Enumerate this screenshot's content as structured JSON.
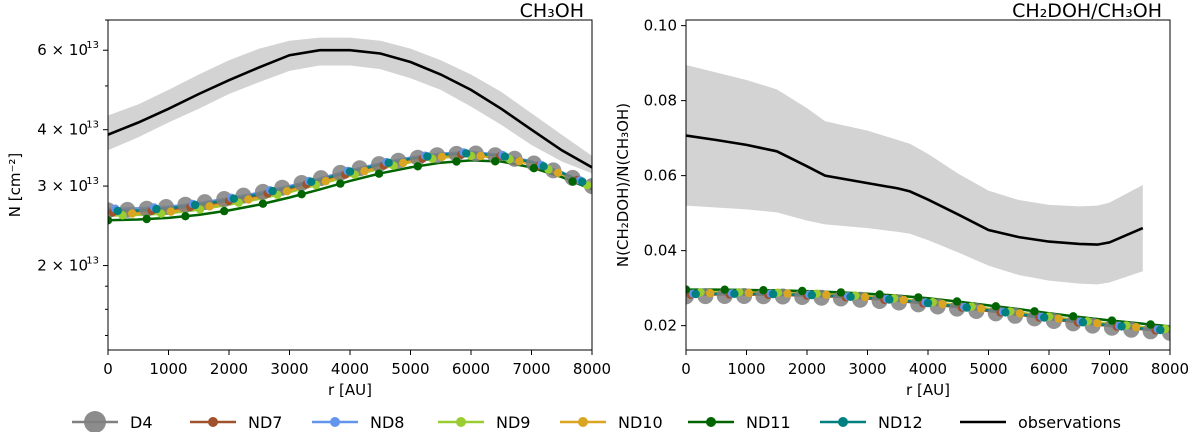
{
  "chart_data": [
    {
      "type": "line",
      "title": "CH₃OH",
      "xlabel": "r [AU]",
      "ylabel": "N [cm⁻²]",
      "yscale": "log",
      "xlim": [
        0,
        8000
      ],
      "ylim": [
        13000000000000.0,
        70000000000000.0
      ],
      "x_ticks": [
        0,
        1000,
        2000,
        3000,
        4000,
        5000,
        6000,
        7000,
        8000
      ],
      "y_ticks": [
        {
          "value": 20000000000000.0,
          "label": "2 × 10",
          "exp": "13"
        },
        {
          "value": 30000000000000.0,
          "label": "3 × 10",
          "exp": "13"
        },
        {
          "value": 40000000000000.0,
          "label": "4 × 10",
          "exp": "13"
        },
        {
          "value": 60000000000000.0,
          "label": "6 × 10",
          "exp": "13"
        }
      ],
      "observations": {
        "x": [
          0,
          500,
          1000,
          1500,
          2000,
          2500,
          3000,
          3500,
          4000,
          4500,
          5000,
          5500,
          6000,
          6500,
          7000,
          7500,
          8000
        ],
        "y": [
          39000000000000.0,
          41500000000000.0,
          44500000000000.0,
          48000000000000.0,
          51500000000000.0,
          55000000000000.0,
          58500000000000.0,
          60000000000000.0,
          60000000000000.0,
          59000000000000.0,
          56500000000000.0,
          53000000000000.0,
          49000000000000.0,
          44500000000000.0,
          40000000000000.0,
          36000000000000.0,
          33000000000000.0
        ],
        "band_low": [
          36000000000000.0,
          38500000000000.0,
          41500000000000.0,
          44500000000000.0,
          48000000000000.0,
          51000000000000.0,
          54000000000000.0,
          55500000000000.0,
          55500000000000.0,
          54500000000000.0,
          52000000000000.0,
          49000000000000.0,
          45000000000000.0,
          41000000000000.0,
          37000000000000.0,
          34000000000000.0,
          32000000000000.0
        ],
        "band_high": [
          43000000000000.0,
          45500000000000.0,
          49000000000000.0,
          53000000000000.0,
          57000000000000.0,
          60500000000000.0,
          63000000000000.0,
          64000000000000.0,
          64000000000000.0,
          63000000000000.0,
          60500000000000.0,
          57000000000000.0,
          53000000000000.0,
          48500000000000.0,
          43500000000000.0,
          39000000000000.0,
          35000000000000.0
        ]
      },
      "model_x": [
        0,
        500,
        1000,
        1500,
        2000,
        2500,
        3000,
        3500,
        4000,
        4500,
        5000,
        5500,
        6000,
        6500,
        7000,
        7500,
        8000
      ],
      "series": [
        {
          "name": "D4",
          "values": [
            26500000000000.0,
            26600000000000.0,
            27000000000000.0,
            27500000000000.0,
            28200000000000.0,
            29000000000000.0,
            30000000000000.0,
            31200000000000.0,
            32500000000000.0,
            33600000000000.0,
            34500000000000.0,
            35200000000000.0,
            35500000000000.0,
            35000000000000.0,
            33800000000000.0,
            32000000000000.0,
            30000000000000.0
          ]
        },
        {
          "name": "ND7",
          "values": [
            26200000000000.0,
            26300000000000.0,
            26600000000000.0,
            27100000000000.0,
            27800000000000.0,
            28600000000000.0,
            29600000000000.0,
            30800000000000.0,
            32000000000000.0,
            33200000000000.0,
            34200000000000.0,
            35000000000000.0,
            35300000000000.0,
            34900000000000.0,
            33700000000000.0,
            32000000000000.0,
            30000000000000.0
          ]
        },
        {
          "name": "ND8",
          "values": [
            26700000000000.0,
            26800000000000.0,
            27000000000000.0,
            27500000000000.0,
            28200000000000.0,
            29000000000000.0,
            30000000000000.0,
            31200000000000.0,
            32500000000000.0,
            33700000000000.0,
            34700000000000.0,
            35400000000000.0,
            35700000000000.0,
            35200000000000.0,
            34000000000000.0,
            32200000000000.0,
            30000000000000.0
          ]
        },
        {
          "name": "ND9",
          "values": [
            25800000000000.0,
            25900000000000.0,
            26100000000000.0,
            26600000000000.0,
            27300000000000.0,
            28100000000000.0,
            29100000000000.0,
            30300000000000.0,
            31600000000000.0,
            32800000000000.0,
            33900000000000.0,
            34700000000000.0,
            35000000000000.0,
            34700000000000.0,
            33600000000000.0,
            31900000000000.0,
            29800000000000.0
          ]
        },
        {
          "name": "ND10",
          "values": [
            26000000000000.0,
            26100000000000.0,
            26300000000000.0,
            26800000000000.0,
            27500000000000.0,
            28300000000000.0,
            29300000000000.0,
            30500000000000.0,
            31800000000000.0,
            33000000000000.0,
            34000000000000.0,
            34800000000000.0,
            35100000000000.0,
            34700000000000.0,
            33600000000000.0,
            31900000000000.0,
            29800000000000.0
          ]
        },
        {
          "name": "ND11",
          "values": [
            25200000000000.0,
            25300000000000.0,
            25500000000000.0,
            25900000000000.0,
            26500000000000.0,
            27300000000000.0,
            28300000000000.0,
            29500000000000.0,
            30800000000000.0,
            32000000000000.0,
            33000000000000.0,
            33800000000000.0,
            34200000000000.0,
            34000000000000.0,
            33000000000000.0,
            31400000000000.0,
            29500000000000.0
          ]
        },
        {
          "name": "ND12",
          "values": [
            26400000000000.0,
            26500000000000.0,
            26800000000000.0,
            27300000000000.0,
            28000000000000.0,
            28800000000000.0,
            29800000000000.0,
            31000000000000.0,
            32300000000000.0,
            33500000000000.0,
            34500000000000.0,
            35200000000000.0,
            35500000000000.0,
            35000000000000.0,
            33900000000000.0,
            32100000000000.0,
            30000000000000.0
          ]
        }
      ]
    },
    {
      "type": "line",
      "title": "CH₂DOH/CH₃OH",
      "xlabel": "r [AU]",
      "ylabel": "N(CH₂DOH)/N(CH₃OH)",
      "yscale": "linear",
      "xlim": [
        0,
        8000
      ],
      "ylim": [
        0.0135,
        0.1015
      ],
      "x_ticks": [
        0,
        1000,
        2000,
        3000,
        4000,
        5000,
        6000,
        7000,
        8000
      ],
      "y_ticks": [
        {
          "value": 0.02,
          "label": "0.02"
        },
        {
          "value": 0.04,
          "label": "0.04"
        },
        {
          "value": 0.06,
          "label": "0.06"
        },
        {
          "value": 0.08,
          "label": "0.08"
        },
        {
          "value": 0.1,
          "label": "0.10"
        }
      ],
      "observations": {
        "x": [
          0,
          500,
          1000,
          1500,
          2000,
          2300,
          3000,
          3500,
          3700,
          4000,
          4500,
          5000,
          5500,
          6000,
          6500,
          6800,
          7000,
          7550
        ],
        "y": [
          0.0707,
          0.0695,
          0.0682,
          0.0665,
          0.0625,
          0.06,
          0.058,
          0.0566,
          0.0558,
          0.0536,
          0.0496,
          0.0455,
          0.0436,
          0.0424,
          0.0418,
          0.0416,
          0.0422,
          0.046
        ],
        "band_low": [
          0.052,
          0.0515,
          0.051,
          0.0502,
          0.048,
          0.047,
          0.046,
          0.045,
          0.0445,
          0.0428,
          0.0395,
          0.036,
          0.0335,
          0.032,
          0.0312,
          0.031,
          0.0315,
          0.0345
        ],
        "band_high": [
          0.0895,
          0.0875,
          0.0855,
          0.083,
          0.078,
          0.0745,
          0.072,
          0.0695,
          0.0685,
          0.0658,
          0.0605,
          0.056,
          0.0535,
          0.0522,
          0.0518,
          0.052,
          0.0528,
          0.0575
        ]
      },
      "model_x": [
        0,
        500,
        1000,
        1500,
        2000,
        2500,
        3000,
        3500,
        4000,
        4500,
        5000,
        5500,
        6000,
        6500,
        7000,
        7500,
        8000
      ],
      "series": [
        {
          "name": "D4",
          "values": [
            0.0278,
            0.0279,
            0.0279,
            0.0278,
            0.0276,
            0.0273,
            0.0268,
            0.0262,
            0.0254,
            0.0245,
            0.0235,
            0.0225,
            0.0214,
            0.0204,
            0.0195,
            0.0187,
            0.0181
          ]
        },
        {
          "name": "ND7",
          "values": [
            0.0282,
            0.0283,
            0.0283,
            0.0282,
            0.028,
            0.0277,
            0.0272,
            0.0266,
            0.0258,
            0.0249,
            0.0239,
            0.0229,
            0.0218,
            0.0208,
            0.0199,
            0.0191,
            0.0184
          ]
        },
        {
          "name": "ND8",
          "values": [
            0.0285,
            0.0286,
            0.0286,
            0.0285,
            0.0283,
            0.028,
            0.0275,
            0.0269,
            0.0261,
            0.0252,
            0.0242,
            0.0232,
            0.0221,
            0.0211,
            0.0202,
            0.0194,
            0.0187
          ]
        },
        {
          "name": "ND9",
          "values": [
            0.0288,
            0.0289,
            0.0289,
            0.0288,
            0.0286,
            0.0283,
            0.0278,
            0.0272,
            0.0264,
            0.0255,
            0.0245,
            0.0235,
            0.0224,
            0.0214,
            0.0205,
            0.0197,
            0.019
          ]
        },
        {
          "name": "ND10",
          "values": [
            0.0286,
            0.0287,
            0.0287,
            0.0286,
            0.0284,
            0.0281,
            0.0276,
            0.027,
            0.0262,
            0.0253,
            0.0243,
            0.0233,
            0.0222,
            0.0212,
            0.0203,
            0.0195,
            0.0188
          ]
        },
        {
          "name": "ND11",
          "values": [
            0.0296,
            0.0296,
            0.0295,
            0.0294,
            0.0292,
            0.0289,
            0.0285,
            0.028,
            0.0273,
            0.0264,
            0.0254,
            0.0244,
            0.0233,
            0.0223,
            0.0214,
            0.0206,
            0.0198
          ]
        },
        {
          "name": "ND12",
          "values": [
            0.0284,
            0.0285,
            0.0285,
            0.0284,
            0.0282,
            0.0279,
            0.0274,
            0.0268,
            0.026,
            0.0251,
            0.0241,
            0.0231,
            0.022,
            0.021,
            0.0201,
            0.0193,
            0.0186
          ]
        }
      ]
    }
  ],
  "legend": {
    "placement": "bottom",
    "items": [
      {
        "name": "D4",
        "color": "#808080",
        "marker": "large"
      },
      {
        "name": "ND7",
        "color": "#a0522d",
        "marker": "dot"
      },
      {
        "name": "ND8",
        "color": "#6495ed",
        "marker": "dot"
      },
      {
        "name": "ND9",
        "color": "#9acd32",
        "marker": "dot"
      },
      {
        "name": "ND10",
        "color": "#daa520",
        "marker": "dot"
      },
      {
        "name": "ND11",
        "color": "#006400",
        "marker": "dot"
      },
      {
        "name": "ND12",
        "color": "#008080",
        "marker": "dot"
      },
      {
        "name": "observations",
        "color": "#000000",
        "marker": "none"
      }
    ]
  },
  "colors": {
    "D4": "#808080",
    "ND7": "#a0522d",
    "ND8": "#6495ed",
    "ND9": "#9acd32",
    "ND10": "#daa520",
    "ND11": "#006400",
    "ND12": "#008080",
    "observations": "#000000",
    "band": "#d3d3d3"
  }
}
